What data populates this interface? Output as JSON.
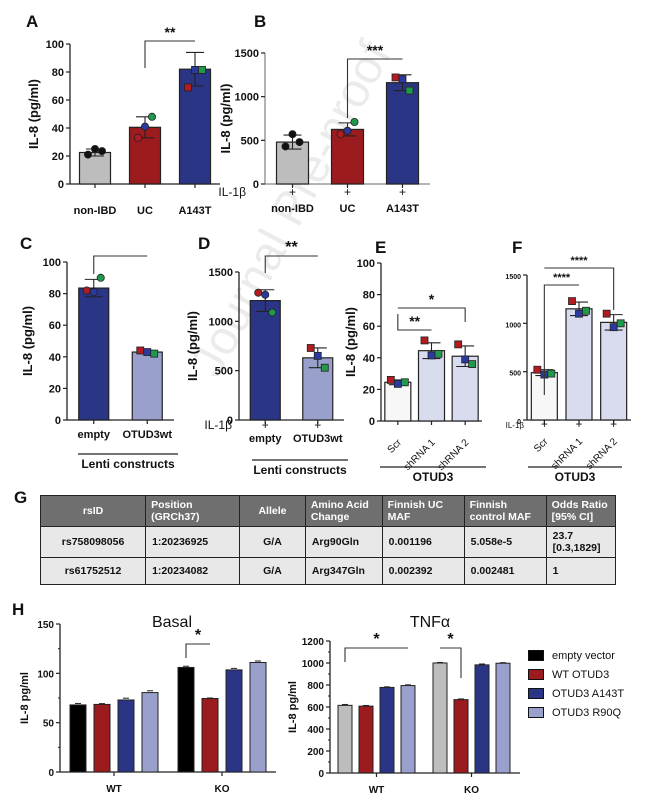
{
  "watermark": "Journal Pre-proof",
  "colors": {
    "grey": "#bdbdbd",
    "red": "#9b1b1f",
    "navy": "#2b3585",
    "lavender": "#9aa0cc",
    "pale": "#d9dcee",
    "white": "#f7f7f7",
    "black": "#000000",
    "green": "#1f9a4a",
    "dotblue": "#2a3aa0",
    "dotred": "#b01c22"
  },
  "panels": {
    "A": "A",
    "B": "B",
    "C": "C",
    "D": "D",
    "E": "E",
    "F": "F",
    "G": "G",
    "H": "H"
  },
  "chart_data": [
    {
      "id": "A",
      "type": "bar",
      "title": "",
      "xlabel": "",
      "ylabel": "IL-8 (pg/ml)",
      "ylim": [
        0,
        100
      ],
      "yticks": [
        "0",
        "20",
        "40",
        "60",
        "80",
        "100"
      ],
      "categories": [
        "non-IBD",
        "UC",
        "A143T"
      ],
      "values": [
        22.5,
        40.5,
        82
      ],
      "errors": [
        2.5,
        7.5,
        12
      ],
      "points": [
        [
          21,
          25,
          23.5
        ],
        [
          33,
          41,
          48
        ],
        [
          69,
          81.5,
          81.5
        ]
      ],
      "significance": [
        {
          "from": 1,
          "to": 2,
          "label": "**"
        }
      ]
    },
    {
      "id": "B",
      "type": "bar",
      "ylabel": "IL-8 (pg/ml)",
      "ylim": [
        0,
        1500
      ],
      "yticks": [
        "0",
        "500",
        "1000",
        "1500"
      ],
      "treatment_label": "IL-1β",
      "treatment_marks": [
        "+",
        "+",
        "+"
      ],
      "categories": [
        "non-IBD",
        "UC",
        "A143T"
      ],
      "values": [
        480,
        625,
        1160
      ],
      "errors": [
        80,
        75,
        90
      ],
      "points": [
        [
          430,
          570,
          480
        ],
        [
          570,
          610,
          710
        ],
        [
          1220,
          1200,
          1070
        ]
      ],
      "significance": [
        {
          "from": 1,
          "to": 2,
          "label": "***"
        }
      ]
    },
    {
      "id": "C",
      "type": "bar",
      "ylabel": "IL-8 (pg/ml)",
      "ylim": [
        0,
        100
      ],
      "yticks": [
        "0",
        "20",
        "40",
        "60",
        "80",
        "100"
      ],
      "categories": [
        "empty",
        "OTUD3wt"
      ],
      "group_label": "Lenti constructs",
      "values": [
        83.5,
        43
      ],
      "errors": [
        5.5,
        1
      ],
      "points": [
        [
          82,
          81,
          90
        ],
        [
          44,
          43,
          42
        ]
      ],
      "significance": [
        {
          "from": 0,
          "to": 1,
          "label": ""
        }
      ]
    },
    {
      "id": "D",
      "type": "bar",
      "ylabel": "IL-8 (pg/ml)",
      "ylim": [
        0,
        1500
      ],
      "yticks": [
        "0",
        "500",
        "1000",
        "1500"
      ],
      "treatment_label": "IL-1β",
      "treatment_marks": [
        "+",
        "+"
      ],
      "categories": [
        "empty",
        "OTUD3wt"
      ],
      "group_label": "Lenti constructs",
      "values": [
        1210,
        630
      ],
      "errors": [
        110,
        100
      ],
      "points": [
        [
          1290,
          1270,
          1090
        ],
        [
          730,
          650,
          530
        ]
      ],
      "significance": [
        {
          "from": 0,
          "to": 1,
          "label": "**"
        }
      ]
    },
    {
      "id": "E",
      "type": "bar",
      "ylabel": "IL-8 (pg/ml)",
      "ylim": [
        0,
        100
      ],
      "yticks": [
        "0",
        "20",
        "40",
        "60",
        "80",
        "100"
      ],
      "categories": [
        "Scr",
        "shRNA 1",
        "shRNA 2"
      ],
      "group_label": "OTUD3",
      "values": [
        24.5,
        44.5,
        41
      ],
      "errors": [
        1.5,
        5,
        6.5
      ],
      "points": [
        [
          26,
          23.5,
          24.5
        ],
        [
          51,
          41.5,
          42.5
        ],
        [
          48.5,
          39,
          36
        ]
      ],
      "significance": [
        {
          "from": 0,
          "to": 1,
          "label": "**"
        },
        {
          "from": 0,
          "to": 2,
          "label": "*"
        }
      ]
    },
    {
      "id": "F",
      "type": "bar",
      "ylabel": "",
      "ylim": [
        0,
        1500
      ],
      "yticks": [
        "0",
        "500",
        "1000",
        "1500"
      ],
      "treatment_label": "IL-1β",
      "treatment_marks": [
        "+",
        "+",
        "+"
      ],
      "categories": [
        "Scr",
        "shRNA 1",
        "shRNA 2"
      ],
      "group_label": "OTUD3",
      "values": [
        490,
        1150,
        1010
      ],
      "errors": [
        30,
        70,
        80
      ],
      "points": [
        [
          520,
          470,
          480
        ],
        [
          1230,
          1100,
          1130
        ],
        [
          1100,
          960,
          1000
        ]
      ],
      "significance": [
        {
          "from": 0,
          "to": 1,
          "label": "****"
        },
        {
          "from": 0,
          "to": 2,
          "label": "****"
        }
      ]
    },
    {
      "id": "G",
      "type": "table",
      "columns": [
        "rsID",
        "Position (GRCh37)",
        "Allele",
        "Amino Acid Change",
        "Finnish UC MAF",
        "Finnish control MAF",
        "Odds Ratio [95% CI]"
      ],
      "rows": [
        [
          "rs758098056",
          "1:20236925",
          "G/A",
          "Arg90Gln",
          "0.001196",
          "5.058e-5",
          "23.7 [0.3,1829]"
        ],
        [
          "rs61752512",
          "1:20234082",
          "G/A",
          "Arg347Gln",
          "0.002392",
          "0.002481",
          "1"
        ]
      ]
    },
    {
      "id": "H-basal",
      "type": "bar",
      "title": "Basal",
      "ylabel": "IL-8 pg/ml",
      "ylim": [
        0,
        150
      ],
      "yticks": [
        "0",
        "50",
        "100",
        "150"
      ],
      "categories": [
        "WT",
        "KO"
      ],
      "series": [
        {
          "name": "empty vector",
          "values": [
            68,
            106
          ],
          "errors": [
            1.5,
            1.2
          ]
        },
        {
          "name": "WT OTUD3",
          "values": [
            68.5,
            74.5
          ],
          "errors": [
            0.8,
            0.5
          ]
        },
        {
          "name": "OTUD3 A143T",
          "values": [
            73,
            103.5
          ],
          "errors": [
            1.8,
            1.5
          ]
        },
        {
          "name": "OTUD3 R90Q",
          "values": [
            80.5,
            111
          ],
          "errors": [
            1.8,
            1.5
          ]
        }
      ],
      "significance": [
        {
          "group": 1,
          "from": 0,
          "to": 1,
          "label": "*"
        }
      ]
    },
    {
      "id": "H-tnf",
      "type": "bar",
      "title": "TNFα",
      "ylabel": "IL-8 pg/ml",
      "ylim": [
        0,
        1200
      ],
      "yticks": [
        "0",
        "200",
        "400",
        "600",
        "800",
        "1000",
        "1200"
      ],
      "categories": [
        "WT",
        "KO"
      ],
      "series": [
        {
          "name": "empty vector",
          "values": [
            615,
            1000
          ],
          "errors": [
            8,
            5
          ]
        },
        {
          "name": "WT OTUD3",
          "values": [
            608,
            667
          ],
          "errors": [
            6,
            6
          ]
        },
        {
          "name": "OTUD3 A143T",
          "values": [
            778,
            983
          ],
          "errors": [
            5,
            8
          ]
        },
        {
          "name": "OTUD3 R90Q",
          "values": [
            795,
            998
          ],
          "errors": [
            6,
            5
          ]
        }
      ],
      "legend": [
        "empty vector",
        "WT OTUD3",
        "OTUD3 A143T",
        "OTUD3 R90Q"
      ],
      "legend_position": "right",
      "significance": [
        {
          "group": 0,
          "from": 0,
          "to": 3,
          "label": "*"
        },
        {
          "group": 1,
          "from": 0,
          "to": 1,
          "label": "*"
        }
      ]
    }
  ]
}
